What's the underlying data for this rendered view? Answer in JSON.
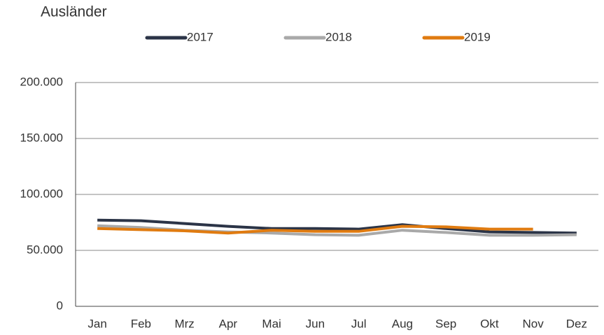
{
  "chart_data": {
    "type": "line",
    "title": "Ausländer",
    "categories": [
      "Jan",
      "Feb",
      "Mrz",
      "Apr",
      "Mai",
      "Jun",
      "Jul",
      "Aug",
      "Sep",
      "Okt",
      "Nov",
      "Dez"
    ],
    "series": [
      {
        "name": "2017",
        "color": "#2b3447",
        "values": [
          77000,
          76500,
          74000,
          71500,
          69500,
          69500,
          69000,
          73000,
          69500,
          66500,
          66000,
          65500
        ]
      },
      {
        "name": "2018",
        "color": "#a9a9a9",
        "values": [
          72000,
          70500,
          68000,
          66500,
          65500,
          64000,
          63500,
          68000,
          66000,
          63500,
          63500,
          64000
        ]
      },
      {
        "name": "2019",
        "color": "#e07b10",
        "values": [
          69500,
          68500,
          67500,
          65500,
          68000,
          67000,
          67000,
          71500,
          71000,
          69000,
          69000,
          null
        ]
      }
    ],
    "ylim": [
      0,
      200000
    ],
    "yticks": [
      0,
      {
        "value": 50000,
        "label": "50.000"
      },
      {
        "value": 100000,
        "label": "100.000"
      },
      {
        "value": 150000,
        "label": "150.000"
      },
      {
        "value": 200000,
        "label": "200.000"
      }
    ],
    "grid": true
  }
}
